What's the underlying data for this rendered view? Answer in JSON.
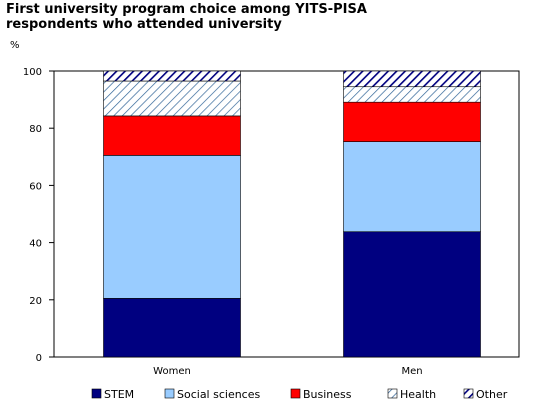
{
  "title_line1": "First university program choice among YITS-PISA",
  "title_line2": "respondents who attended university",
  "chart_data": {
    "type": "bar",
    "stacked": true,
    "title": "First university program choice among YITS-PISA respondents who attended university",
    "ylabel": "%",
    "xlabel": "",
    "ylim": [
      0,
      100
    ],
    "yticks": [
      0,
      20,
      40,
      60,
      80,
      100
    ],
    "categories": [
      "Women",
      "Men"
    ],
    "series": [
      {
        "name": "STEM",
        "values": [
          20.5,
          43.8
        ],
        "color": "#000080",
        "pattern": "solid"
      },
      {
        "name": "Social sciences",
        "values": [
          50.0,
          31.5
        ],
        "color": "#99ccff",
        "pattern": "solid"
      },
      {
        "name": "Business",
        "values": [
          13.8,
          13.8
        ],
        "color": "#ff0000",
        "pattern": "solid"
      },
      {
        "name": "Health",
        "values": [
          12.2,
          5.4
        ],
        "color": "#336699",
        "pattern": "light-diagonal"
      },
      {
        "name": "Other",
        "values": [
          3.5,
          5.5
        ],
        "color": "#000080",
        "pattern": "heavy-diagonal"
      }
    ],
    "grid": false,
    "legend_position": "bottom"
  }
}
